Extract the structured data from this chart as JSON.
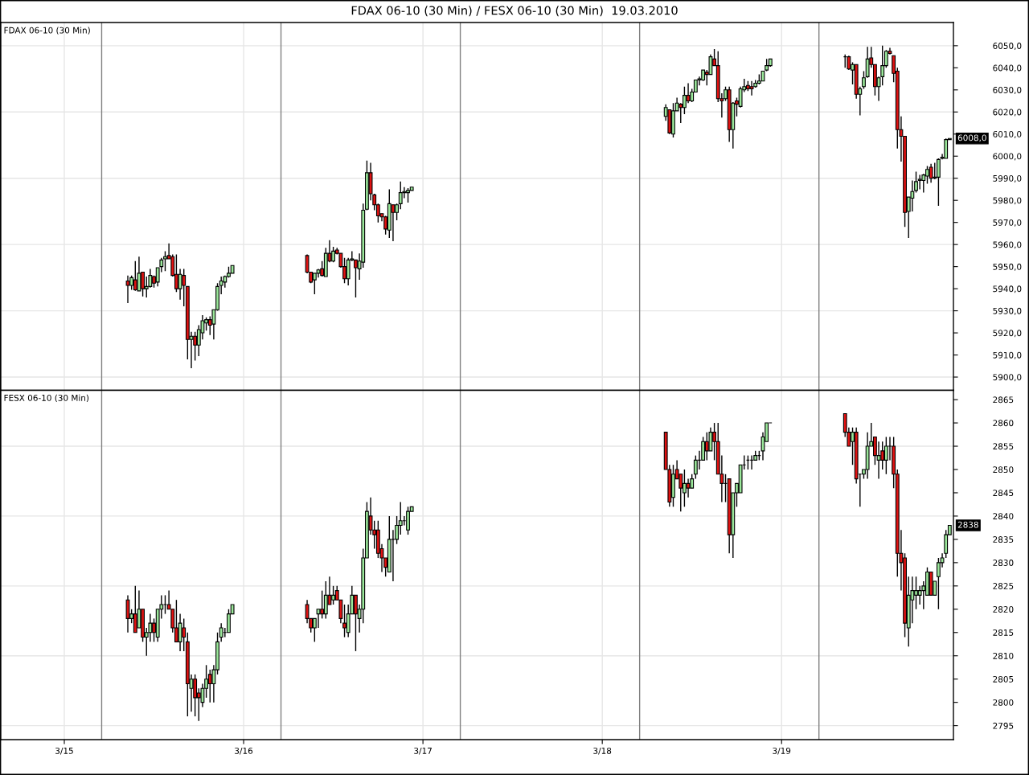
{
  "chart_data": [
    {
      "type": "candlestick",
      "title": "FDAX 06-10 (30 Min) / FESX 06-10 (30 Min)  19.03.2010",
      "subtitle": "FDAX 06-10 (30 Min)",
      "x": [
        "2010-03-15T08:30",
        "2010-03-15T09:00",
        "2010-03-15T09:30",
        "2010-03-15T10:00",
        "2010-03-15T10:30",
        "2010-03-15T11:00",
        "2010-03-15T11:30",
        "2010-03-15T12:00",
        "2010-03-15T12:30",
        "2010-03-15T13:00",
        "2010-03-15T13:30",
        "2010-03-15T14:00",
        "2010-03-15T14:30",
        "2010-03-15T15:00",
        "2010-03-15T15:30",
        "2010-03-15T16:00",
        "2010-03-15T16:30",
        "2010-03-15T17:00",
        "2010-03-15T17:30",
        "2010-03-15T18:00",
        "2010-03-15T18:30",
        "2010-03-15T19:00",
        "2010-03-15T19:30",
        "2010-03-15T20:00",
        "2010-03-15T20:30",
        "2010-03-15T21:00",
        "2010-03-15T21:30",
        "2010-03-15T22:00",
        "2010-03-15T22:30",
        "2010-03-16T08:30",
        "2010-03-16T09:00",
        "2010-03-16T09:30",
        "2010-03-16T10:00",
        "2010-03-16T10:30",
        "2010-03-16T11:00",
        "2010-03-16T11:30",
        "2010-03-16T12:00",
        "2010-03-16T12:30",
        "2010-03-16T13:00",
        "2010-03-16T13:30",
        "2010-03-16T14:00",
        "2010-03-16T14:30",
        "2010-03-16T15:00",
        "2010-03-16T15:30",
        "2010-03-16T16:00",
        "2010-03-16T16:30",
        "2010-03-16T17:00",
        "2010-03-16T17:30",
        "2010-03-16T18:00",
        "2010-03-16T18:30",
        "2010-03-16T19:00",
        "2010-03-16T19:30",
        "2010-03-16T20:00",
        "2010-03-16T20:30",
        "2010-03-16T21:00",
        "2010-03-16T21:30",
        "2010-03-16T22:00",
        "2010-03-16T22:30",
        "2010-03-18T08:30",
        "2010-03-18T09:00",
        "2010-03-18T09:30",
        "2010-03-18T10:00",
        "2010-03-18T10:30",
        "2010-03-18T11:00",
        "2010-03-18T11:30",
        "2010-03-18T12:00",
        "2010-03-18T12:30",
        "2010-03-18T13:00",
        "2010-03-18T13:30",
        "2010-03-18T14:00",
        "2010-03-18T14:30",
        "2010-03-18T15:00",
        "2010-03-18T15:30",
        "2010-03-18T16:00",
        "2010-03-18T16:30",
        "2010-03-18T17:00",
        "2010-03-18T17:30",
        "2010-03-18T18:00",
        "2010-03-18T18:30",
        "2010-03-18T19:00",
        "2010-03-18T19:30",
        "2010-03-18T20:00",
        "2010-03-18T20:30",
        "2010-03-18T21:00",
        "2010-03-18T21:30",
        "2010-03-18T22:00",
        "2010-03-18T22:30",
        "2010-03-19T08:30",
        "2010-03-19T09:00",
        "2010-03-19T09:30",
        "2010-03-19T10:00",
        "2010-03-19T10:30",
        "2010-03-19T11:00",
        "2010-03-19T11:30",
        "2010-03-19T12:00",
        "2010-03-19T12:30",
        "2010-03-19T13:00",
        "2010-03-19T13:30",
        "2010-03-19T14:00",
        "2010-03-19T14:30",
        "2010-03-19T15:00",
        "2010-03-19T15:30",
        "2010-03-19T16:00",
        "2010-03-19T16:30",
        "2010-03-19T17:00",
        "2010-03-19T17:30",
        "2010-03-19T18:00",
        "2010-03-19T18:30",
        "2010-03-19T19:00",
        "2010-03-19T19:30",
        "2010-03-19T20:00",
        "2010-03-19T20:30",
        "2010-03-19T21:00",
        "2010-03-19T21:30",
        "2010-03-19T22:00",
        "2010-03-19T22:30"
      ],
      "ohlc": [
        [
          5943.5,
          5946,
          5933.5,
          5941.5
        ],
        [
          5941.5,
          5946,
          5939.5,
          5945
        ],
        [
          5944,
          5952.5,
          5939,
          5939.5
        ],
        [
          5939,
          5954.5,
          5939,
          5947
        ],
        [
          5947.5,
          5947.5,
          5936.5,
          5940
        ],
        [
          5940,
          5945.5,
          5936,
          5941
        ],
        [
          5941,
          5949,
          5940.5,
          5946
        ],
        [
          5945.5,
          5946,
          5940.5,
          5942.5
        ],
        [
          5943,
          5949.5,
          5941,
          5949.5
        ],
        [
          5950,
          5954,
          5947.5,
          5953
        ],
        [
          5953.5,
          5957,
          5948,
          5954.5
        ],
        [
          5955,
          5960.5,
          5953.5,
          5953.5
        ],
        [
          5954.5,
          5955.5,
          5945.5,
          5946
        ],
        [
          5946.5,
          5955.5,
          5938.5,
          5940
        ],
        [
          5940,
          5949,
          5935,
          5946.5
        ],
        [
          5946,
          5949,
          5932,
          5941.5
        ],
        [
          5941,
          5941,
          5908,
          5917
        ],
        [
          5917,
          5920.5,
          5904,
          5918.5
        ],
        [
          5918.5,
          5920.5,
          5907.5,
          5914.5
        ],
        [
          5914.5,
          5923.5,
          5909.5,
          5921.5
        ],
        [
          5920,
          5928,
          5917,
          5925.5
        ],
        [
          5924.5,
          5927,
          5921,
          5926
        ],
        [
          5926,
          5927.5,
          5919,
          5923.5
        ],
        [
          5924,
          5930.5,
          5917,
          5930.5
        ],
        [
          5930.5,
          5942.5,
          5930,
          5941
        ],
        [
          5941.5,
          5945.5,
          5937.5,
          5943.5
        ],
        [
          5943,
          5946,
          5940.5,
          5945.5
        ],
        [
          5945.5,
          5950,
          5945,
          5947
        ],
        [
          5947,
          5950.5,
          5947,
          5950.5
        ],
        [
          5955,
          5955.5,
          5947,
          5947.5
        ],
        [
          5947.5,
          5947.5,
          5942.5,
          5943
        ],
        [
          5944,
          5947,
          5937.5,
          5947
        ],
        [
          5947,
          5949,
          5945,
          5948.5
        ],
        [
          5949,
          5952.5,
          5945.5,
          5946
        ],
        [
          5945.5,
          5958.5,
          5945.5,
          5956
        ],
        [
          5956,
          5962,
          5952,
          5952.5
        ],
        [
          5952.5,
          5959,
          5952,
          5957
        ],
        [
          5957.5,
          5958.5,
          5955.5,
          5956
        ],
        [
          5956,
          5956,
          5949.5,
          5950
        ],
        [
          5950,
          5954,
          5942.5,
          5944.5
        ],
        [
          5944.5,
          5954,
          5941.5,
          5953
        ],
        [
          5953,
          5957,
          5952.5,
          5953.5
        ],
        [
          5953,
          5953,
          5936,
          5949.5
        ],
        [
          5949,
          5956,
          5944,
          5952.5
        ],
        [
          5952,
          5978.5,
          5949.5,
          5975.5
        ],
        [
          5976,
          5998,
          5975.5,
          5992.5
        ],
        [
          5992.5,
          5997,
          5980,
          5983
        ],
        [
          5982.5,
          5983,
          5975.5,
          5978
        ],
        [
          5978,
          5978.5,
          5970,
          5973
        ],
        [
          5974,
          5974,
          5970.5,
          5972.5
        ],
        [
          5972.5,
          5973,
          5964.5,
          5967
        ],
        [
          5966.5,
          5985,
          5963,
          5978.5
        ],
        [
          5978,
          5978,
          5961.5,
          5974.5
        ],
        [
          5974.5,
          5978.5,
          5971,
          5978
        ],
        [
          5978.5,
          5988.5,
          5976,
          5983.5
        ],
        [
          5983.5,
          5986,
          5981,
          5984
        ],
        [
          5983.5,
          5985.5,
          5979,
          5984.5
        ],
        [
          5984.5,
          5986,
          5984.5,
          5986
        ],
        [
          6018,
          6023.5,
          6016,
          6022
        ],
        [
          6021,
          6021,
          6010,
          6010.5
        ],
        [
          6010,
          6024,
          6008.5,
          6020.5
        ],
        [
          6020.5,
          6026.5,
          6020.5,
          6024
        ],
        [
          6023.5,
          6024,
          6015,
          6022
        ],
        [
          6022,
          6031.5,
          6019,
          6027.5
        ],
        [
          6027.5,
          6033,
          6024,
          6025
        ],
        [
          6025,
          6030.5,
          6024.5,
          6029
        ],
        [
          6029,
          6034.5,
          6029,
          6034.5
        ],
        [
          6034.5,
          6036,
          6032,
          6035
        ],
        [
          6034.5,
          6039,
          6034,
          6039
        ],
        [
          6038,
          6039,
          6032,
          6037
        ],
        [
          6037,
          6046,
          6037,
          6045
        ],
        [
          6044,
          6048.5,
          6041,
          6041
        ],
        [
          6041,
          6047.5,
          6024.5,
          6026
        ],
        [
          6026,
          6028.5,
          6017.5,
          6025
        ],
        [
          6026,
          6031.5,
          6025,
          6030
        ],
        [
          6030,
          6031.5,
          6006.5,
          6012
        ],
        [
          6012,
          6024.5,
          6003.5,
          6024
        ],
        [
          6025,
          6026.5,
          6018,
          6023.5
        ],
        [
          6022.5,
          6031.5,
          6022,
          6030.5
        ],
        [
          6030,
          6035,
          6029,
          6031.5
        ],
        [
          6032,
          6034,
          6029.5,
          6030.5
        ],
        [
          6031.5,
          6034,
          6027.5,
          6030.5
        ],
        [
          6031.5,
          6034.5,
          6031,
          6033
        ],
        [
          6033,
          6037,
          6032.5,
          6034
        ],
        [
          6034,
          6038.5,
          6034,
          6038.5
        ],
        [
          6039,
          6044,
          6038.5,
          6041
        ],
        [
          6041,
          6044,
          6040.5,
          6044
        ],
        [
          6045,
          6046,
          6040,
          6045
        ],
        [
          6045,
          6045.5,
          6039,
          6039.5
        ],
        [
          6039,
          6042.5,
          6032.5,
          6041.5
        ],
        [
          6041.5,
          6041.5,
          6026,
          6028
        ],
        [
          6028,
          6031.5,
          6018.5,
          6030.5
        ],
        [
          6031.5,
          6038.5,
          6030.5,
          6035.5
        ],
        [
          6036,
          6049.5,
          6035.5,
          6044
        ],
        [
          6044.5,
          6049.5,
          6040,
          6041.5
        ],
        [
          6041.5,
          6041.5,
          6027.5,
          6031.5
        ],
        [
          6031.5,
          6036,
          6025,
          6035.5
        ],
        [
          6036,
          6050,
          6032,
          6041
        ],
        [
          6041,
          6048,
          6040,
          6047.5
        ],
        [
          6047.5,
          6049,
          6046,
          6046.5
        ],
        [
          6045.5,
          6045.5,
          6033.5,
          6037.5
        ],
        [
          6038.5,
          6040,
          6003.5,
          6012
        ],
        [
          6012,
          6018,
          5997.5,
          6009
        ],
        [
          6009,
          6009,
          5968,
          5974.5
        ],
        [
          5975,
          5981.5,
          5963,
          5981.5
        ],
        [
          5981,
          5989,
          5975,
          5984
        ],
        [
          5984.5,
          5993,
          5983.5,
          5988.5
        ],
        [
          5989,
          5991.5,
          5985,
          5989.5
        ],
        [
          5989,
          5992,
          5983.5,
          5991.5
        ],
        [
          5991,
          5995.5,
          5987.5,
          5994
        ],
        [
          5995,
          5996.5,
          5988,
          5990
        ],
        [
          5990,
          5997,
          5989.5,
          5990.5
        ],
        [
          5990.5,
          5999,
          5977.5,
          5998.5
        ],
        [
          5999,
          6001,
          5998.5,
          5999.5
        ],
        [
          5999,
          6008,
          5999,
          6007.5
        ],
        [
          6007.5,
          6008,
          6007.5,
          6008
        ]
      ],
      "xlim": [
        "2010-03-14T15:30",
        "2010-03-19T23:00"
      ],
      "xticks": [
        {
          "value": "2010-03-15",
          "label": null
        },
        {
          "value": "2010-03-16",
          "label": null
        },
        {
          "value": "2010-03-17",
          "label": null
        },
        {
          "value": "2010-03-18",
          "label": null
        },
        {
          "value": "2010-03-19",
          "label": null
        }
      ],
      "ylim": [
        5894,
        6060.5
      ],
      "yticks": [
        {
          "value": 5900,
          "label": "5900,0"
        },
        {
          "value": 5910,
          "label": "5910,0"
        },
        {
          "value": 5920,
          "label": "5920,0"
        },
        {
          "value": 5930,
          "label": "5930,0"
        },
        {
          "value": 5940,
          "label": "5940,0"
        },
        {
          "value": 5950,
          "label": "5950,0"
        },
        {
          "value": 5960,
          "label": "5960,0"
        },
        {
          "value": 5970,
          "label": "5970,0"
        },
        {
          "value": 5980,
          "label": "5980,0"
        },
        {
          "value": 5990,
          "label": "5990,0"
        },
        {
          "value": 6000,
          "label": "6000,0"
        },
        {
          "value": 6010,
          "label": "6010,0"
        },
        {
          "value": 6020,
          "label": "6020,0"
        },
        {
          "value": 6030,
          "label": "6030,0"
        },
        {
          "value": 6040,
          "label": "6040,0"
        },
        {
          "value": 6050,
          "label": "6050,0"
        }
      ],
      "tick_labels": "y",
      "grid": true,
      "ref_lines": [
        {
          "axis": "x",
          "value": "2010-03-15T05:00",
          "color": "#808080"
        },
        {
          "axis": "x",
          "value": "2010-03-16T05:00",
          "color": "#808080"
        },
        {
          "axis": "x",
          "value": "2010-03-17T05:00",
          "color": "#808080"
        },
        {
          "axis": "x",
          "value": "2010-03-18T05:00",
          "color": "#808080"
        },
        {
          "axis": "x",
          "value": "2010-03-19T05:00",
          "color": "#808080"
        }
      ],
      "annotations": [
        {
          "text": "6008,0",
          "x": "2010-03-19T22:30",
          "y": 6008
        }
      ]
    },
    {
      "type": "candlestick",
      "subtitle": "FESX 06-10 (30 Min)",
      "x": [
        "2010-03-15T08:30",
        "2010-03-15T09:00",
        "2010-03-15T09:30",
        "2010-03-15T10:00",
        "2010-03-15T10:30",
        "2010-03-15T11:00",
        "2010-03-15T11:30",
        "2010-03-15T12:00",
        "2010-03-15T12:30",
        "2010-03-15T13:00",
        "2010-03-15T13:30",
        "2010-03-15T14:00",
        "2010-03-15T14:30",
        "2010-03-15T15:00",
        "2010-03-15T15:30",
        "2010-03-15T16:00",
        "2010-03-15T16:30",
        "2010-03-15T17:00",
        "2010-03-15T17:30",
        "2010-03-15T18:00",
        "2010-03-15T18:30",
        "2010-03-15T19:00",
        "2010-03-15T19:30",
        "2010-03-15T20:00",
        "2010-03-15T20:30",
        "2010-03-15T21:00",
        "2010-03-15T21:30",
        "2010-03-15T22:00",
        "2010-03-15T22:30",
        "2010-03-16T08:30",
        "2010-03-16T09:00",
        "2010-03-16T09:30",
        "2010-03-16T10:00",
        "2010-03-16T10:30",
        "2010-03-16T11:00",
        "2010-03-16T11:30",
        "2010-03-16T12:00",
        "2010-03-16T12:30",
        "2010-03-16T13:00",
        "2010-03-16T13:30",
        "2010-03-16T14:00",
        "2010-03-16T14:30",
        "2010-03-16T15:00",
        "2010-03-16T15:30",
        "2010-03-16T16:00",
        "2010-03-16T16:30",
        "2010-03-16T17:00",
        "2010-03-16T17:30",
        "2010-03-16T18:00",
        "2010-03-16T18:30",
        "2010-03-16T19:00",
        "2010-03-16T19:30",
        "2010-03-16T20:00",
        "2010-03-16T20:30",
        "2010-03-16T21:00",
        "2010-03-16T21:30",
        "2010-03-16T22:00",
        "2010-03-16T22:30",
        "2010-03-18T08:30",
        "2010-03-18T09:00",
        "2010-03-18T09:30",
        "2010-03-18T10:00",
        "2010-03-18T10:30",
        "2010-03-18T11:00",
        "2010-03-18T11:30",
        "2010-03-18T12:00",
        "2010-03-18T12:30",
        "2010-03-18T13:00",
        "2010-03-18T13:30",
        "2010-03-18T14:00",
        "2010-03-18T14:30",
        "2010-03-18T15:00",
        "2010-03-18T15:30",
        "2010-03-18T16:00",
        "2010-03-18T16:30",
        "2010-03-18T17:00",
        "2010-03-18T17:30",
        "2010-03-18T18:00",
        "2010-03-18T18:30",
        "2010-03-18T19:00",
        "2010-03-18T19:30",
        "2010-03-18T20:00",
        "2010-03-18T20:30",
        "2010-03-18T21:00",
        "2010-03-18T21:30",
        "2010-03-18T22:00",
        "2010-03-18T22:30",
        "2010-03-19T08:30",
        "2010-03-19T09:00",
        "2010-03-19T09:30",
        "2010-03-19T10:00",
        "2010-03-19T10:30",
        "2010-03-19T11:00",
        "2010-03-19T11:30",
        "2010-03-19T12:00",
        "2010-03-19T12:30",
        "2010-03-19T13:00",
        "2010-03-19T13:30",
        "2010-03-19T14:00",
        "2010-03-19T14:30",
        "2010-03-19T15:00",
        "2010-03-19T15:30",
        "2010-03-19T16:00",
        "2010-03-19T16:30",
        "2010-03-19T17:00",
        "2010-03-19T17:30",
        "2010-03-19T18:00",
        "2010-03-19T18:30",
        "2010-03-19T19:00",
        "2010-03-19T19:30",
        "2010-03-19T20:00",
        "2010-03-19T20:30",
        "2010-03-19T21:00",
        "2010-03-19T21:30",
        "2010-03-19T22:00",
        "2010-03-19T22:30"
      ],
      "ohlc": [
        [
          2822,
          2823,
          2815,
          2818
        ],
        [
          2818,
          2820,
          2817,
          2819
        ],
        [
          2819,
          2825,
          2815,
          2815
        ],
        [
          2816,
          2824,
          2816,
          2820
        ],
        [
          2820,
          2820,
          2813,
          2814
        ],
        [
          2814,
          2816,
          2810,
          2815
        ],
        [
          2815,
          2819,
          2813,
          2817
        ],
        [
          2817,
          2818,
          2813,
          2815
        ],
        [
          2814,
          2820,
          2813,
          2820
        ],
        [
          2820,
          2823,
          2818,
          2821
        ],
        [
          2821,
          2823,
          2819,
          2821
        ],
        [
          2821,
          2824,
          2820,
          2820
        ],
        [
          2820,
          2820,
          2815,
          2816
        ],
        [
          2816,
          2822,
          2813,
          2813
        ],
        [
          2813,
          2819,
          2811,
          2817
        ],
        [
          2816,
          2818,
          2811,
          2814
        ],
        [
          2813,
          2815,
          2797,
          2804
        ],
        [
          2803,
          2806,
          2798,
          2805
        ],
        [
          2805,
          2806,
          2797,
          2801
        ],
        [
          2802,
          2803,
          2796,
          2801
        ],
        [
          2800,
          2804,
          2799,
          2803
        ],
        [
          2803,
          2808,
          2801,
          2805
        ],
        [
          2806,
          2807,
          2800,
          2804
        ],
        [
          2804,
          2808,
          2800,
          2807
        ],
        [
          2807,
          2815,
          2806,
          2813
        ],
        [
          2814,
          2817,
          2813,
          2816
        ],
        [
          2815,
          2816,
          2814,
          2815
        ],
        [
          2815,
          2820,
          2815,
          2819
        ],
        [
          2819,
          2821,
          2819,
          2821
        ],
        [
          2821,
          2822,
          2817,
          2818
        ],
        [
          2818,
          2818,
          2815,
          2816
        ],
        [
          2816,
          2818,
          2813,
          2818
        ],
        [
          2819,
          2820,
          2816,
          2820
        ],
        [
          2820,
          2824,
          2818,
          2819
        ],
        [
          2819,
          2826,
          2818,
          2823
        ],
        [
          2823,
          2827,
          2821,
          2821
        ],
        [
          2822,
          2825,
          2821,
          2823
        ],
        [
          2824,
          2825,
          2822,
          2822
        ],
        [
          2822,
          2822,
          2817,
          2818
        ],
        [
          2817,
          2821,
          2814,
          2816
        ],
        [
          2815,
          2821,
          2814,
          2819
        ],
        [
          2819,
          2825,
          2819,
          2823
        ],
        [
          2823,
          2823,
          2811,
          2819
        ],
        [
          2818,
          2821,
          2815,
          2820
        ],
        [
          2820,
          2833,
          2817,
          2831
        ],
        [
          2831,
          2843,
          2831,
          2841
        ],
        [
          2840,
          2844,
          2836,
          2837
        ],
        [
          2837,
          2839,
          2833,
          2836
        ],
        [
          2837,
          2839,
          2831,
          2832
        ],
        [
          2833,
          2834,
          2828,
          2831
        ],
        [
          2831,
          2831,
          2827,
          2829
        ],
        [
          2828,
          2840,
          2828,
          2835
        ],
        [
          2835,
          2837,
          2826,
          2835
        ],
        [
          2835,
          2840,
          2834,
          2838
        ],
        [
          2838,
          2843,
          2836,
          2839
        ],
        [
          2839,
          2840,
          2838,
          2839
        ],
        [
          2837,
          2842,
          2836,
          2841
        ],
        [
          2841,
          2842,
          2841,
          2842
        ],
        [
          2858,
          2858,
          2850,
          2850
        ],
        [
          2850,
          2851,
          2842,
          2843
        ],
        [
          2844,
          2851,
          2842,
          2849
        ],
        [
          2850,
          2852,
          2848,
          2848
        ],
        [
          2849,
          2849,
          2841,
          2846
        ],
        [
          2845,
          2850,
          2842,
          2847
        ],
        [
          2847,
          2848,
          2844,
          2846
        ],
        [
          2846,
          2849,
          2846,
          2848
        ],
        [
          2849,
          2853,
          2848,
          2852
        ],
        [
          2852,
          2854,
          2850,
          2852
        ],
        [
          2852,
          2857,
          2852,
          2856
        ],
        [
          2856,
          2858,
          2852,
          2854
        ],
        [
          2854,
          2859,
          2854,
          2858
        ],
        [
          2858,
          2860,
          2852,
          2856
        ],
        [
          2856,
          2860,
          2849,
          2849
        ],
        [
          2849,
          2853,
          2843,
          2847
        ],
        [
          2847,
          2849,
          2843,
          2847
        ],
        [
          2848,
          2848,
          2832,
          2836
        ],
        [
          2836,
          2845,
          2831,
          2845
        ],
        [
          2845,
          2847,
          2842,
          2847
        ],
        [
          2845,
          2851,
          2845,
          2851
        ],
        [
          2851,
          2853,
          2850,
          2851
        ],
        [
          2852,
          2853,
          2850,
          2852
        ],
        [
          2852,
          2853,
          2850,
          2852
        ],
        [
          2852,
          2854,
          2852,
          2853
        ],
        [
          2853,
          2854,
          2852,
          2853
        ],
        [
          2854,
          2858,
          2852,
          2857
        ],
        [
          2856,
          2860,
          2856,
          2860
        ],
        [
          2860,
          2860,
          2860,
          2860
        ],
        [
          2862,
          2862,
          2857,
          2858
        ],
        [
          2858,
          2859,
          2855,
          2855
        ],
        [
          2856,
          2859,
          2851,
          2858
        ],
        [
          2858,
          2859,
          2847,
          2848
        ],
        [
          2849,
          2849,
          2842,
          2849
        ],
        [
          2849,
          2850,
          2848,
          2850
        ],
        [
          2850,
          2858,
          2848,
          2855
        ],
        [
          2855,
          2860,
          2855,
          2856
        ],
        [
          2857,
          2857,
          2851,
          2853
        ],
        [
          2852,
          2856,
          2848,
          2853
        ],
        [
          2854,
          2856,
          2850,
          2852
        ],
        [
          2852,
          2857,
          2849,
          2855
        ],
        [
          2855,
          2857,
          2852,
          2855
        ],
        [
          2855,
          2857,
          2846,
          2849
        ],
        [
          2849,
          2850,
          2827,
          2832
        ],
        [
          2832,
          2837,
          2824,
          2830
        ],
        [
          2831,
          2832,
          2814,
          2817
        ],
        [
          2816,
          2827,
          2812,
          2823
        ],
        [
          2822,
          2827,
          2817,
          2824
        ],
        [
          2823,
          2827,
          2820,
          2824
        ],
        [
          2823,
          2825,
          2821,
          2824
        ],
        [
          2824,
          2826,
          2820,
          2825
        ],
        [
          2823,
          2829,
          2823,
          2828
        ],
        [
          2828,
          2828,
          2823,
          2823
        ],
        [
          2823,
          2826,
          2823,
          2826
        ],
        [
          2827,
          2831,
          2820,
          2830
        ],
        [
          2830,
          2832,
          2829,
          2831
        ],
        [
          2832,
          2837,
          2831,
          2836
        ],
        [
          2836,
          2838,
          2836,
          2838
        ]
      ],
      "xlim": [
        "2010-03-14T15:30",
        "2010-03-19T23:00"
      ],
      "xticks": [
        {
          "value": "2010-03-15",
          "label": "3/15"
        },
        {
          "value": "2010-03-16",
          "label": "3/16"
        },
        {
          "value": "2010-03-17",
          "label": "3/17"
        },
        {
          "value": "2010-03-18",
          "label": "3/18"
        },
        {
          "value": "2010-03-19",
          "label": "3/19"
        }
      ],
      "ylim": [
        2792,
        2867
      ],
      "yticks": [
        2795,
        2800,
        2805,
        2810,
        2815,
        2820,
        2825,
        2830,
        2835,
        2840,
        2845,
        2850,
        2855,
        2860,
        2865
      ],
      "grid": true,
      "ref_lines": [
        {
          "axis": "x",
          "value": "2010-03-15T05:00",
          "color": "#808080"
        },
        {
          "axis": "x",
          "value": "2010-03-16T05:00",
          "color": "#808080"
        },
        {
          "axis": "x",
          "value": "2010-03-17T05:00",
          "color": "#808080"
        },
        {
          "axis": "x",
          "value": "2010-03-18T05:00",
          "color": "#808080"
        },
        {
          "axis": "x",
          "value": "2010-03-19T05:00",
          "color": "#808080"
        }
      ],
      "annotations": [
        {
          "text": "2838",
          "x": "2010-03-19T22:30",
          "y": 2838
        }
      ]
    }
  ]
}
